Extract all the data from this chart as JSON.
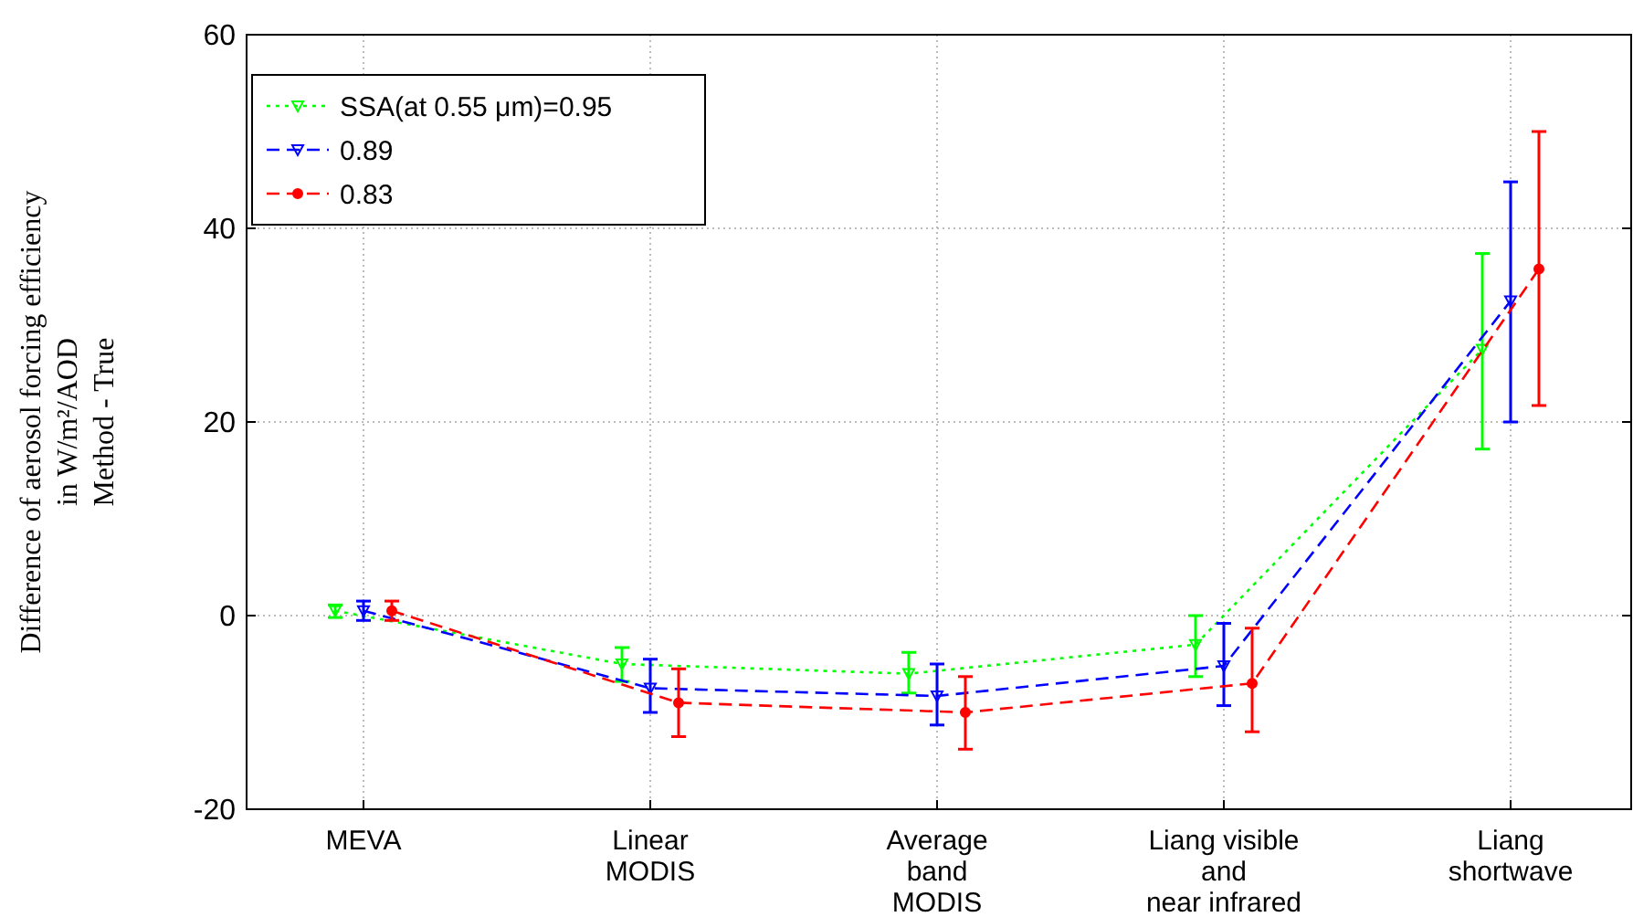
{
  "chart_data": {
    "type": "line",
    "ylabel": "Difference of aerosol forcing efficiency\nin W/m²/AOD\nMethod - True",
    "categories": [
      "MEVA",
      "Linear\nMODIS",
      "Average\nband\nMODIS",
      "Liang visible\nand\nnear infrared",
      "Liang\nshortwave"
    ],
    "series": [
      {
        "name": "SSA(at 0.55 μm)=0.95",
        "color": "#00ff00",
        "marker": "triangle",
        "line_style": "dotted",
        "values": [
          0.5,
          -5,
          -6,
          -3,
          27.5
        ],
        "errors": [
          [
            -0.2,
            1.1
          ],
          [
            -6.8,
            -3.3
          ],
          [
            -8,
            -3.8
          ],
          [
            -6.3,
            0
          ],
          [
            17.2,
            37.4
          ]
        ]
      },
      {
        "name": "0.89",
        "color": "#0000ff",
        "marker": "triangle",
        "line_style": "dashed",
        "values": [
          0.5,
          -7.5,
          -8.3,
          -5.2,
          32.5
        ],
        "errors": [
          [
            -0.5,
            1.5
          ],
          [
            -10,
            -4.5
          ],
          [
            -11.3,
            -5
          ],
          [
            -9.3,
            -0.8
          ],
          [
            20,
            44.8
          ]
        ]
      },
      {
        "name": "0.83",
        "color": "#ff0000",
        "marker": "circle",
        "line_style": "dashed",
        "values": [
          0.5,
          -9,
          -10,
          -7,
          35.8
        ],
        "errors": [
          [
            -0.5,
            1.5
          ],
          [
            -12.5,
            -5.5
          ],
          [
            -13.8,
            -6.3
          ],
          [
            -12,
            -1.3
          ],
          [
            21.7,
            50
          ]
        ]
      }
    ],
    "ylim": [
      -20,
      60
    ],
    "yticks": [
      -20,
      0,
      20,
      40,
      60
    ],
    "grid": true,
    "legend": "top left"
  }
}
